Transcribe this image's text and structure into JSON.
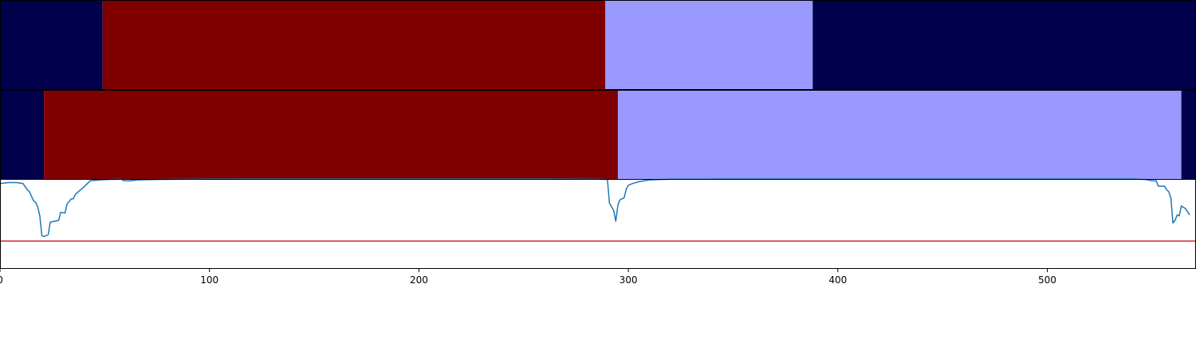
{
  "chart_data": [
    {
      "type": "heatmap",
      "title": "",
      "x_range": [
        0,
        571
      ],
      "segments": [
        {
          "start": 0,
          "end": 49,
          "color": "#00004c"
        },
        {
          "start": 49,
          "end": 289,
          "color": "#800000"
        },
        {
          "start": 289,
          "end": 388,
          "color": "#9999ff"
        },
        {
          "start": 388,
          "end": 571,
          "color": "#00004c"
        }
      ]
    },
    {
      "type": "heatmap",
      "title": "",
      "x_range": [
        0,
        571
      ],
      "segments": [
        {
          "start": 0,
          "end": 21,
          "color": "#00004c"
        },
        {
          "start": 21,
          "end": 295,
          "color": "#800000"
        },
        {
          "start": 295,
          "end": 564,
          "color": "#9999ff"
        },
        {
          "start": 564,
          "end": 571,
          "color": "#00004c"
        }
      ]
    },
    {
      "type": "line",
      "title": "",
      "xlabel": "",
      "ylabel": "",
      "xlim": [
        0,
        571
      ],
      "ylim": [
        -1.0,
        0.0
      ],
      "x_ticks": [
        0,
        100,
        200,
        300,
        400,
        500
      ],
      "threshold": {
        "value": -0.69,
        "color": "#d62728"
      },
      "series": [
        {
          "color": "#1f77b4",
          "points": [
            [
              0,
              -0.05
            ],
            [
              4,
              -0.04
            ],
            [
              8,
              -0.04
            ],
            [
              11,
              -0.05
            ],
            [
              13,
              -0.12
            ],
            [
              14,
              -0.14
            ],
            [
              16,
              -0.24
            ],
            [
              17,
              -0.26
            ],
            [
              18,
              -0.31
            ],
            [
              19,
              -0.41
            ],
            [
              20,
              -0.63
            ],
            [
              21,
              -0.64
            ],
            [
              22,
              -0.63
            ],
            [
              23,
              -0.62
            ],
            [
              24,
              -0.48
            ],
            [
              26,
              -0.47
            ],
            [
              28,
              -0.46
            ],
            [
              29,
              -0.37
            ],
            [
              31,
              -0.38
            ],
            [
              32,
              -0.28
            ],
            [
              34,
              -0.22
            ],
            [
              35,
              -0.22
            ],
            [
              36,
              -0.17
            ],
            [
              38,
              -0.13
            ],
            [
              40,
              -0.09
            ],
            [
              43,
              -0.02
            ],
            [
              48,
              -0.01
            ],
            [
              52,
              -0.005
            ],
            [
              58,
              -0.002
            ],
            [
              59,
              -0.02
            ],
            [
              62,
              -0.02
            ],
            [
              66,
              -0.01
            ],
            [
              75,
              -0.005
            ],
            [
              90,
              -0.002
            ],
            [
              120,
              0.0
            ],
            [
              200,
              0.0
            ],
            [
              260,
              0.0
            ],
            [
              285,
              -0.002
            ],
            [
              290,
              -0.005
            ],
            [
              291,
              -0.27
            ],
            [
              293,
              -0.35
            ],
            [
              294,
              -0.47
            ],
            [
              295,
              -0.29
            ],
            [
              296,
              -0.23
            ],
            [
              298,
              -0.21
            ],
            [
              299,
              -0.11
            ],
            [
              300,
              -0.07
            ],
            [
              302,
              -0.05
            ],
            [
              305,
              -0.03
            ],
            [
              310,
              -0.01
            ],
            [
              320,
              -0.003
            ],
            [
              350,
              0.0
            ],
            [
              450,
              0.0
            ],
            [
              540,
              0.0
            ],
            [
              547,
              -0.005
            ],
            [
              550,
              -0.02
            ],
            [
              552,
              -0.02
            ],
            [
              553,
              -0.08
            ],
            [
              555,
              -0.08
            ],
            [
              556,
              -0.08
            ],
            [
              557,
              -0.12
            ],
            [
              558,
              -0.14
            ],
            [
              559,
              -0.21
            ],
            [
              560,
              -0.49
            ],
            [
              561,
              -0.46
            ],
            [
              562,
              -0.4
            ],
            [
              563,
              -0.41
            ],
            [
              564,
              -0.3
            ],
            [
              566,
              -0.33
            ],
            [
              568,
              -0.4
            ]
          ]
        }
      ]
    }
  ]
}
